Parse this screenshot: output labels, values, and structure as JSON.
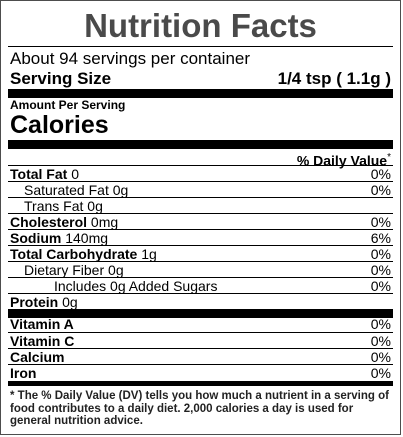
{
  "title": "Nutrition Facts",
  "servings_per_container": "About 94 servings per container",
  "serving_size_label": "Serving Size",
  "serving_size_value": "1/4 tsp ( 1.1g )",
  "amount_per_serving": "Amount Per Serving",
  "calories_label": "Calories",
  "daily_value_header": "% Daily Value",
  "daily_value_mark": "*",
  "nutrients": [
    {
      "name": "Total Fat",
      "amount": "0",
      "dv": "0%"
    },
    {
      "name": "Saturated Fat",
      "amount": "0g",
      "dv": "0%"
    },
    {
      "name": "Trans Fat",
      "amount": "0g",
      "dv": ""
    },
    {
      "name": "Cholesterol",
      "amount": "0mg",
      "dv": "0%"
    },
    {
      "name": "Sodium",
      "amount": "140mg",
      "dv": "6%"
    },
    {
      "name": "Total Carbohydrate",
      "amount": "1g",
      "dv": "0%"
    },
    {
      "name": "Dietary Fiber",
      "amount": "0g",
      "dv": "0%"
    },
    {
      "name": "Includes 0g Added Sugars",
      "amount": "",
      "dv": "0%"
    },
    {
      "name": "Protein",
      "amount": "0g",
      "dv": ""
    }
  ],
  "vitamins": [
    {
      "name": "Vitamin A",
      "dv": "0%"
    },
    {
      "name": "Vitamin C",
      "dv": "0%"
    },
    {
      "name": "Calcium",
      "dv": "0%"
    },
    {
      "name": "Iron",
      "dv": "0%"
    }
  ],
  "footnote": "* The % Daily Value (DV) tells you how much a nutrient in a serving of food contributes to a daily diet. 2,000 calories a day is used for general nutrition advice."
}
